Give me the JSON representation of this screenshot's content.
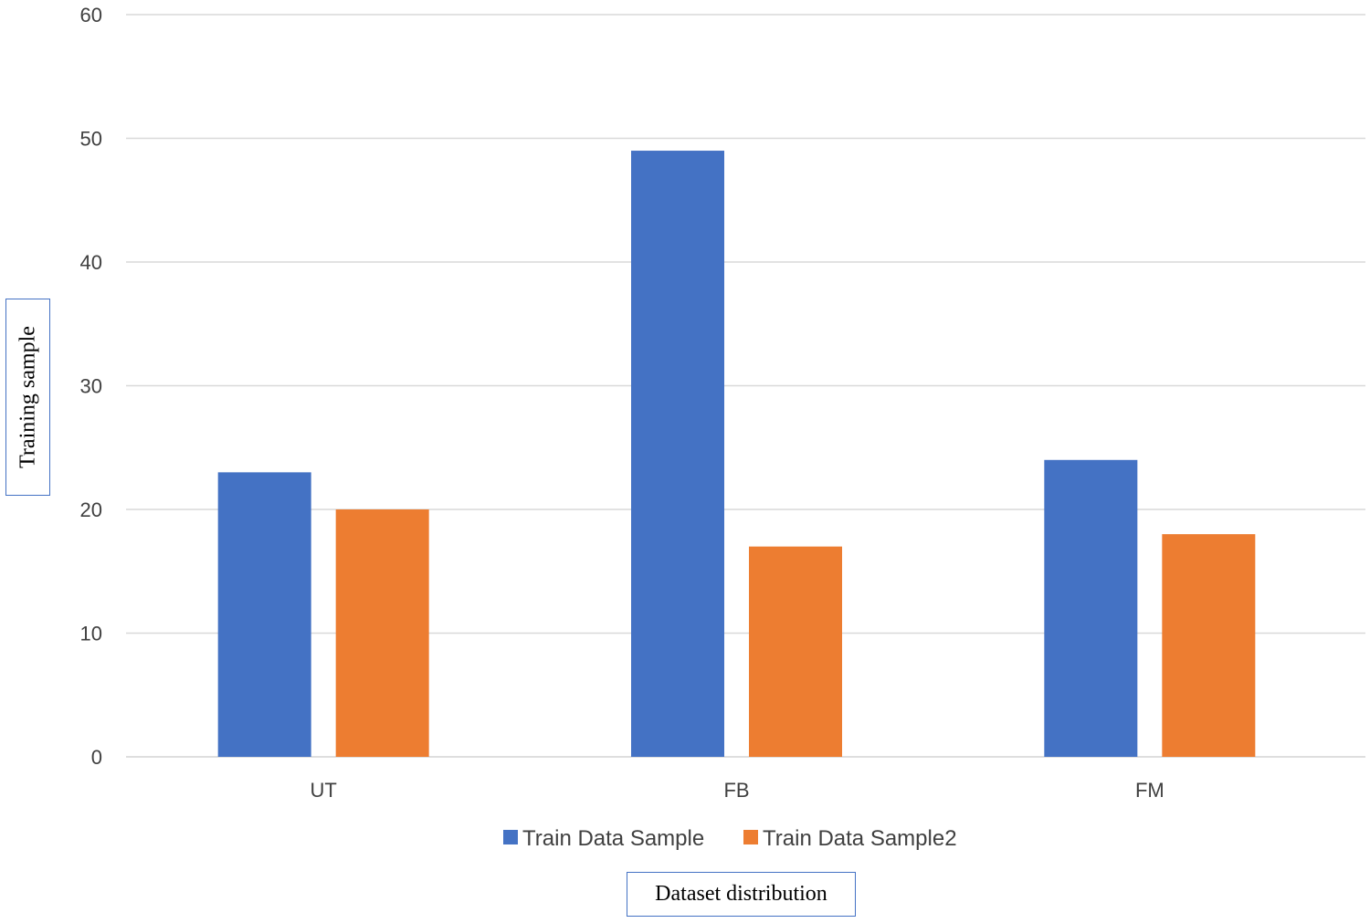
{
  "chart_data": {
    "type": "bar",
    "title": "",
    "categories": [
      "UT",
      "FB",
      "FM"
    ],
    "series": [
      {
        "name": "Train Data Sample",
        "values": [
          23,
          49,
          24
        ],
        "color": "#4472c4"
      },
      {
        "name": "Train Data Sample2",
        "values": [
          20,
          17,
          18
        ],
        "color": "#ed7d31"
      }
    ],
    "xlabel": "Dataset distribution",
    "ylabel": "Training sample",
    "ylim": [
      0,
      60
    ],
    "yticks": [
      "0",
      "10",
      "20",
      "30",
      "40",
      "50",
      "60"
    ],
    "grid": true,
    "legend_position": "bottom"
  }
}
